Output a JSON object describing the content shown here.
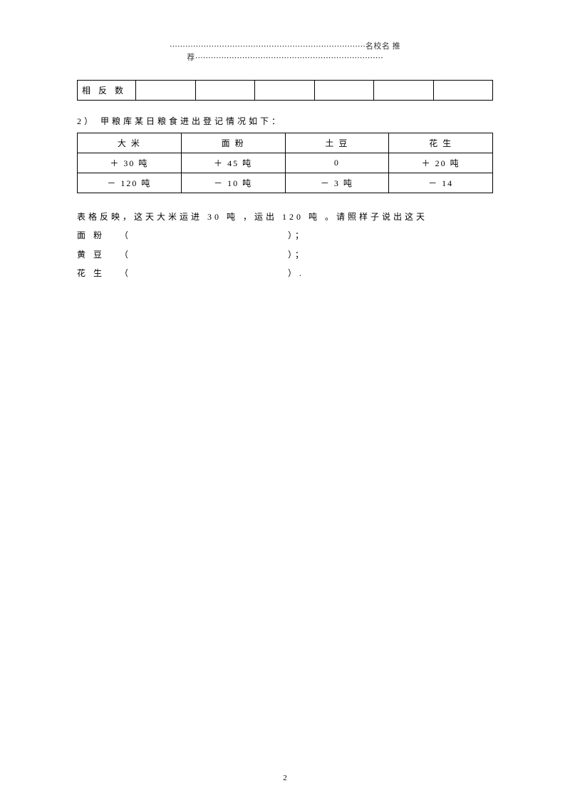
{
  "header": {
    "dots_left": "⋯⋯⋯⋯⋯⋯⋯⋯⋯⋯⋯⋯⋯⋯⋯⋯⋯⋯⋯⋯⋯⋯⋯⋯⋯",
    "title": "名校名 推荐",
    "dots_right": "⋯⋯⋯⋯⋯⋯⋯⋯⋯⋯⋯⋯⋯⋯⋯⋯⋯⋯⋯⋯⋯⋯⋯⋯"
  },
  "table1": {
    "row_label": "相 反 数",
    "cells": [
      "",
      "",
      "",
      "",
      "",
      ""
    ]
  },
  "question2": {
    "prefix": "2）",
    "text": "甲粮库某日粮食进出登记情况如下："
  },
  "table2": {
    "headers": [
      "大 米",
      "面 粉",
      "土 豆",
      "花 生"
    ],
    "rows": [
      [
        "＋ 30 吨",
        "＋ 45 吨",
        "0",
        "＋ 20 吨"
      ],
      [
        "－ 120 吨",
        "－ 10 吨",
        "－ 3 吨",
        "－ 14"
      ]
    ]
  },
  "description": "表格反映，这天大米运进 30 吨 ，运出 120 吨 。请照样子说出这天",
  "fills": [
    {
      "label": "面 粉",
      "open": "（",
      "close": "）；"
    },
    {
      "label": "黄 豆",
      "open": "（",
      "close": "）；"
    },
    {
      "label": "花 生",
      "open": "（",
      "close": "）."
    }
  ],
  "page_number": "2"
}
